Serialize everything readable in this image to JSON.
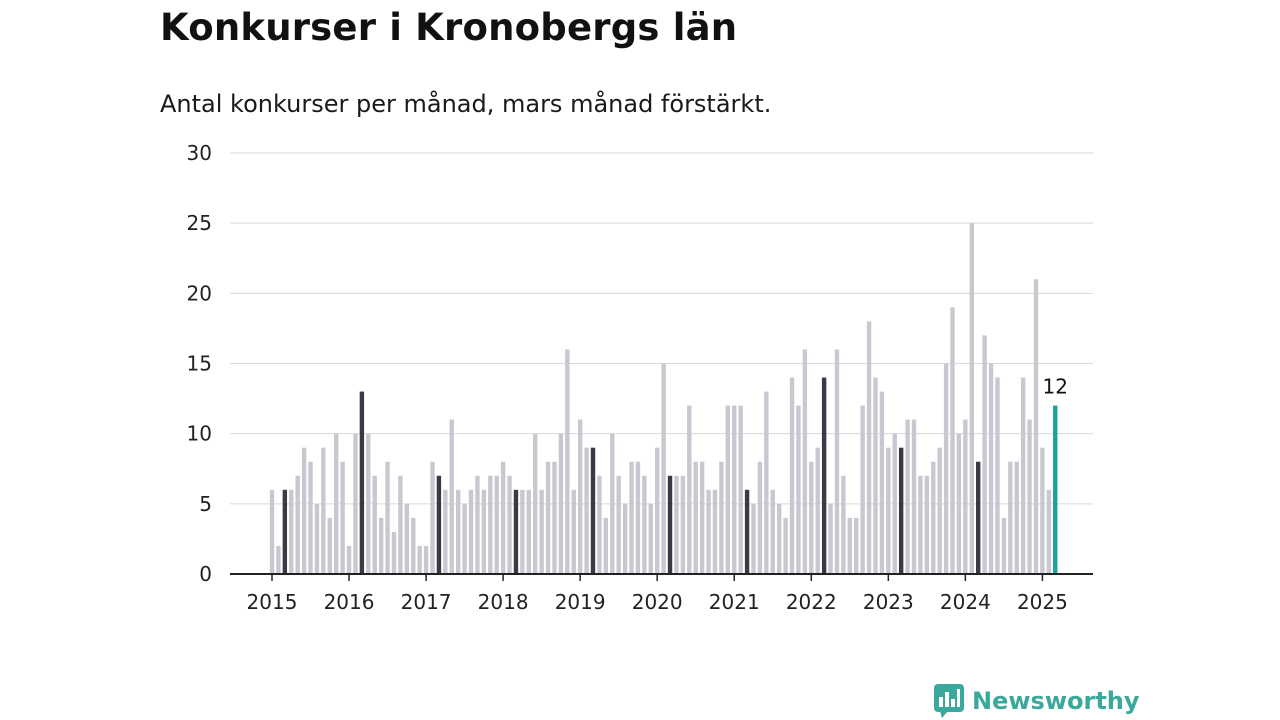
{
  "header": {
    "title": "Konkurser i Kronobergs län",
    "subtitle": "Antal konkurser per månad, mars månad förstärkt."
  },
  "brand": {
    "name": "Newsworthy",
    "logo_icon": "bar-chart-speech-bubble-icon",
    "color": "#3aa89d"
  },
  "colors": {
    "default": "#c8c8d0",
    "march": "#3a3a46",
    "latest": "#1aa39a",
    "grid": "#d9d9d9",
    "axis": "#222222"
  },
  "chart_data": {
    "type": "bar",
    "title": "Konkurser i Kronobergs län",
    "subtitle": "Antal konkurser per månad, mars månad förstärkt.",
    "xlabel": "",
    "ylabel": "",
    "ylim": [
      0,
      30
    ],
    "yticks": [
      0,
      5,
      10,
      15,
      20,
      25,
      30
    ],
    "xticks": [
      "2015",
      "2016",
      "2017",
      "2018",
      "2019",
      "2020",
      "2021",
      "2022",
      "2023",
      "2024",
      "2025"
    ],
    "grid": true,
    "start": "2015-01",
    "highlight_month": 3,
    "latest_label": "12",
    "values": [
      6,
      2,
      6,
      6,
      7,
      9,
      8,
      5,
      9,
      4,
      10,
      8,
      2,
      10,
      13,
      10,
      7,
      4,
      8,
      3,
      7,
      5,
      4,
      2,
      2,
      8,
      7,
      6,
      11,
      6,
      5,
      6,
      7,
      6,
      7,
      7,
      8,
      7,
      6,
      6,
      6,
      10,
      6,
      8,
      8,
      10,
      16,
      6,
      11,
      9,
      9,
      7,
      4,
      10,
      7,
      5,
      8,
      8,
      7,
      5,
      9,
      15,
      7,
      7,
      7,
      12,
      8,
      8,
      6,
      6,
      8,
      12,
      12,
      12,
      6,
      5,
      8,
      13,
      6,
      5,
      4,
      14,
      12,
      16,
      8,
      9,
      14,
      5,
      16,
      7,
      4,
      4,
      12,
      18,
      14,
      13,
      9,
      10,
      9,
      11,
      11,
      7,
      7,
      8,
      9,
      15,
      19,
      10,
      11,
      25,
      8,
      17,
      15,
      14,
      4,
      8,
      8,
      14,
      11,
      21,
      9,
      6,
      12
    ]
  }
}
